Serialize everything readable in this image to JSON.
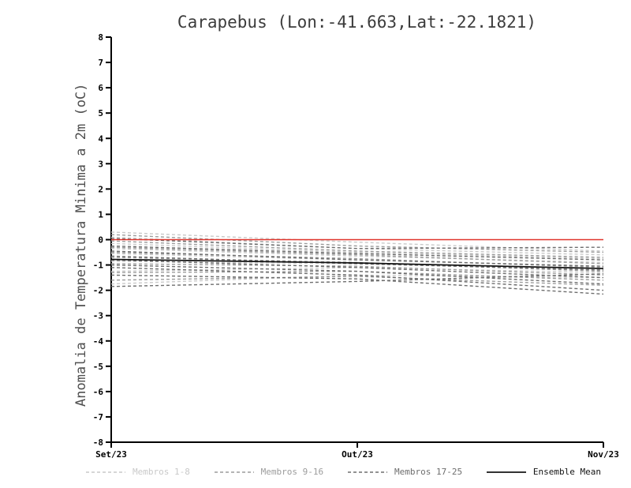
{
  "title": "Carapebus (Lon:-41.663,Lat:-22.1821)",
  "chart_data": {
    "type": "line",
    "title": "Carapebus (Lon:-41.663,Lat:-22.1821)",
    "ylabel": "Anomalia de Temperatura Minima a 2m (oC)",
    "xlabel": "",
    "ylim": [
      -8,
      8
    ],
    "ytick_step": 1,
    "x_categories": [
      "Set/23",
      "Out/23",
      "Nov/23"
    ],
    "grid": false,
    "legend_position": "bottom",
    "zero_line": {
      "color": "#e0342b",
      "values": [
        0,
        0,
        0
      ]
    },
    "groups": [
      {
        "name": "Membros 1-8",
        "color": "#c9c9c9",
        "style": "dashed",
        "series": [
          [
            0.3,
            -0.1,
            -0.45
          ],
          [
            0.1,
            -0.35,
            -0.6
          ],
          [
            -0.15,
            -0.5,
            -0.75
          ],
          [
            -0.35,
            -0.65,
            -0.9
          ],
          [
            -0.55,
            -0.8,
            -1.05
          ],
          [
            -0.85,
            -0.95,
            -1.2
          ],
          [
            -1.25,
            -1.1,
            -1.3
          ],
          [
            -1.75,
            -1.4,
            -1.5
          ]
        ]
      },
      {
        "name": "Membros 9-16",
        "color": "#9c9c9c",
        "style": "dashed",
        "series": [
          [
            0.2,
            -0.25,
            -0.5
          ],
          [
            -0.05,
            -0.45,
            -0.7
          ],
          [
            -0.3,
            -0.6,
            -0.95
          ],
          [
            -0.5,
            -0.75,
            -1.1
          ],
          [
            -0.7,
            -0.9,
            -1.25
          ],
          [
            -0.95,
            -1.05,
            -1.4
          ],
          [
            -1.3,
            -1.25,
            -1.6
          ],
          [
            -1.6,
            -1.45,
            -1.8
          ]
        ]
      },
      {
        "name": "Membros 17-25",
        "color": "#6e6e6e",
        "style": "dashed",
        "series": [
          [
            0.05,
            -0.35,
            -0.3
          ],
          [
            -0.25,
            -0.55,
            -0.8
          ],
          [
            -0.45,
            -0.8,
            -1.05
          ],
          [
            -0.65,
            -0.95,
            -1.2
          ],
          [
            -0.8,
            -1.1,
            -1.5
          ],
          [
            -1.0,
            -1.25,
            -1.75
          ],
          [
            -1.1,
            -1.4,
            -2.0
          ],
          [
            -1.4,
            -1.55,
            -2.15
          ],
          [
            -1.85,
            -1.65,
            -1.35
          ]
        ]
      },
      {
        "name": "Ensemble Mean",
        "color": "#141414",
        "style": "solid",
        "series": [
          [
            -0.78,
            -0.92,
            -1.14
          ]
        ]
      }
    ],
    "legend": [
      "Membros 1-8",
      "Membros 9-16",
      "Membros 17-25",
      "Ensemble Mean"
    ]
  }
}
